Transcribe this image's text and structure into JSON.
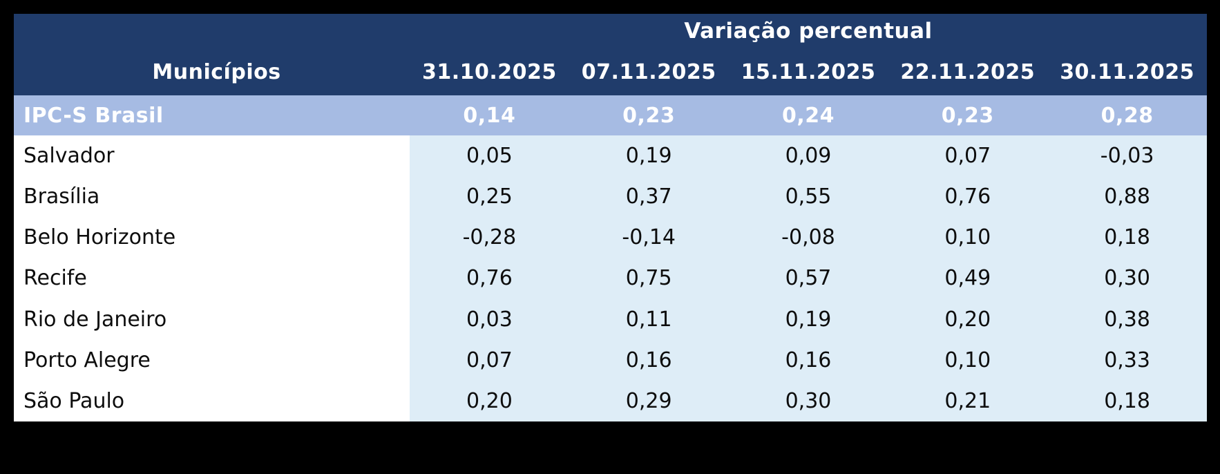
{
  "colors": {
    "page_background": "#000000",
    "header_background": "#203c6b",
    "header_text": "#ffffff",
    "highlight_row_background": "#a6bbe3",
    "highlight_row_text": "#ffffff",
    "data_cell_background": "#deedf7",
    "name_column_background": "#ffffff",
    "body_text": "#0d0d0d"
  },
  "table": {
    "group_header": "Variação percentual",
    "columns": [
      "Municípios",
      "31.10.2025",
      "07.11.2025",
      "15.11.2025",
      "22.11.2025",
      "30.11.2025"
    ],
    "highlight_row": {
      "label": "IPC-S Brasil",
      "values": [
        "0,14",
        "0,23",
        "0,24",
        "0,23",
        "0,28"
      ]
    },
    "rows": [
      {
        "label": "Salvador",
        "values": [
          "0,05",
          "0,19",
          "0,09",
          "0,07",
          "-0,03"
        ]
      },
      {
        "label": "Brasília",
        "values": [
          "0,25",
          "0,37",
          "0,55",
          "0,76",
          "0,88"
        ]
      },
      {
        "label": "Belo Horizonte",
        "values": [
          "-0,28",
          "-0,14",
          "-0,08",
          "0,10",
          "0,18"
        ]
      },
      {
        "label": "Recife",
        "values": [
          "0,76",
          "0,75",
          "0,57",
          "0,49",
          "0,30"
        ]
      },
      {
        "label": "Rio de Janeiro",
        "values": [
          "0,03",
          "0,11",
          "0,19",
          "0,20",
          "0,38"
        ]
      },
      {
        "label": "Porto Alegre",
        "values": [
          "0,07",
          "0,16",
          "0,16",
          "0,10",
          "0,33"
        ]
      },
      {
        "label": "São Paulo",
        "values": [
          "0,20",
          "0,29",
          "0,30",
          "0,21",
          "0,18"
        ]
      }
    ]
  },
  "chart_data": {
    "type": "table",
    "title": "Variação percentual",
    "categories": [
      "31.10.2025",
      "07.11.2025",
      "15.11.2025",
      "22.11.2025",
      "30.11.2025"
    ],
    "row_header": "Municípios",
    "series": [
      {
        "name": "IPC-S Brasil",
        "values": [
          0.14,
          0.23,
          0.24,
          0.23,
          0.28
        ]
      },
      {
        "name": "Salvador",
        "values": [
          0.05,
          0.19,
          0.09,
          0.07,
          -0.03
        ]
      },
      {
        "name": "Brasília",
        "values": [
          0.25,
          0.37,
          0.55,
          0.76,
          0.88
        ]
      },
      {
        "name": "Belo Horizonte",
        "values": [
          -0.28,
          -0.14,
          -0.08,
          0.1,
          0.18
        ]
      },
      {
        "name": "Recife",
        "values": [
          0.76,
          0.75,
          0.57,
          0.49,
          0.3
        ]
      },
      {
        "name": "Rio de Janeiro",
        "values": [
          0.03,
          0.11,
          0.19,
          0.2,
          0.38
        ]
      },
      {
        "name": "Porto Alegre",
        "values": [
          0.07,
          0.16,
          0.16,
          0.1,
          0.33
        ]
      },
      {
        "name": "São Paulo",
        "values": [
          0.2,
          0.29,
          0.3,
          0.21,
          0.18
        ]
      }
    ]
  }
}
